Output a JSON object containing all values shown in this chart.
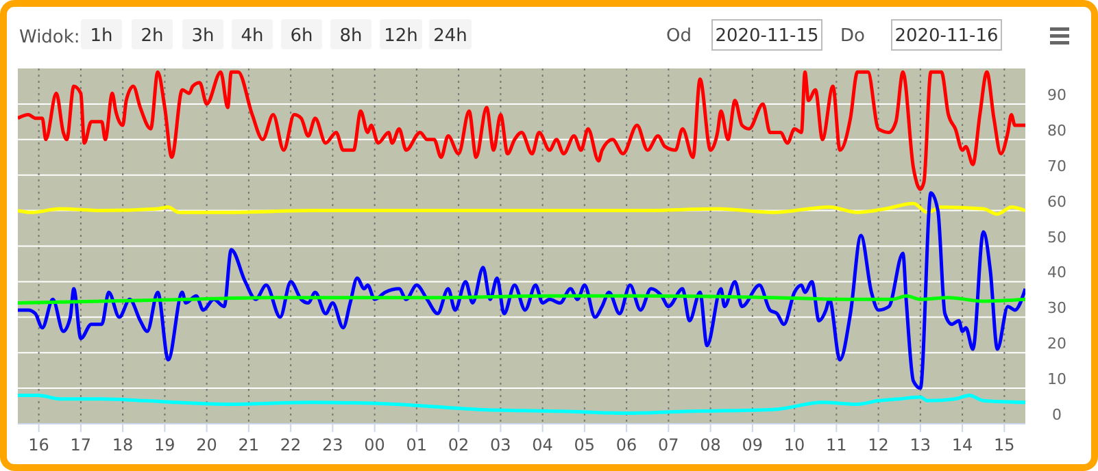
{
  "chart_data": {
    "type": "line",
    "annotations": [
      "Widok:",
      "1h",
      "2h",
      "3h",
      "4h",
      "6h",
      "8h",
      "12h",
      "24h",
      "Od",
      "2020-11-15",
      "Do",
      "2020-11-16"
    ],
    "xlim": [
      "2020-11-15T15:30",
      "2020-11-16T15:30"
    ],
    "xticks": [
      {
        "value": "2020-11-15T16:00",
        "label": "16"
      },
      {
        "value": "2020-11-15T17:00",
        "label": "17"
      },
      {
        "value": "2020-11-15T18:00",
        "label": "18"
      },
      {
        "value": "2020-11-15T19:00",
        "label": "19"
      },
      {
        "value": "2020-11-15T20:00",
        "label": "20"
      },
      {
        "value": "2020-11-15T21:00",
        "label": "21"
      },
      {
        "value": "2020-11-15T22:00",
        "label": "22"
      },
      {
        "value": "2020-11-15T23:00",
        "label": "23"
      },
      {
        "value": "2020-11-16T00:00",
        "label": "00"
      },
      {
        "value": "2020-11-16T01:00",
        "label": "01"
      },
      {
        "value": "2020-11-16T02:00",
        "label": "02"
      },
      {
        "value": "2020-11-16T03:00",
        "label": "03"
      },
      {
        "value": "2020-11-16T04:00",
        "label": "04"
      },
      {
        "value": "2020-11-16T05:00",
        "label": "05"
      },
      {
        "value": "2020-11-16T06:00",
        "label": "06"
      },
      {
        "value": "2020-11-16T07:00",
        "label": "07"
      },
      {
        "value": "2020-11-16T08:00",
        "label": "08"
      },
      {
        "value": "2020-11-16T09:00",
        "label": "09"
      },
      {
        "value": "2020-11-16T10:00",
        "label": "10"
      },
      {
        "value": "2020-11-16T11:00",
        "label": "11"
      },
      {
        "value": "2020-11-16T12:00",
        "label": "12"
      },
      {
        "value": "2020-11-16T13:00",
        "label": "13"
      },
      {
        "value": "2020-11-16T14:00",
        "label": "14"
      },
      {
        "value": "2020-11-16T15:00",
        "label": "15"
      }
    ],
    "ylim": [
      0,
      100
    ],
    "yticks": [
      0,
      10,
      20,
      30,
      40,
      50,
      60,
      70,
      80,
      90
    ],
    "grid": true,
    "marker": "none",
    "line_style": "solid",
    "series": [
      {
        "color": "#ff0000",
        "x": [
          "2020-11-15T15:30",
          "2020-11-15T15:45",
          "2020-11-15T15:55",
          "2020-11-15T16:05",
          "2020-11-15T16:10",
          "2020-11-15T16:25",
          "2020-11-15T16:35",
          "2020-11-15T16:40",
          "2020-11-15T16:50",
          "2020-11-15T17:00",
          "2020-11-15T17:05",
          "2020-11-15T17:15",
          "2020-11-15T17:30",
          "2020-11-15T17:35",
          "2020-11-15T17:45",
          "2020-11-15T17:50",
          "2020-11-15T18:00",
          "2020-11-15T18:05",
          "2020-11-15T18:15",
          "2020-11-15T18:25",
          "2020-11-15T18:40",
          "2020-11-15T18:50",
          "2020-11-15T19:00",
          "2020-11-15T19:10",
          "2020-11-15T19:25",
          "2020-11-15T19:35",
          "2020-11-15T19:40",
          "2020-11-15T19:50",
          "2020-11-15T20:00",
          "2020-11-15T20:20",
          "2020-11-15T20:30",
          "2020-11-15T20:35",
          "2020-11-15T20:45",
          "2020-11-15T21:05",
          "2020-11-15T21:20",
          "2020-11-15T21:35",
          "2020-11-15T21:50",
          "2020-11-15T22:05",
          "2020-11-15T22:15",
          "2020-11-15T22:25",
          "2020-11-15T22:35",
          "2020-11-15T22:50",
          "2020-11-15T23:05",
          "2020-11-15T23:15",
          "2020-11-15T23:30",
          "2020-11-15T23:40",
          "2020-11-15T23:50",
          "2020-11-15T23:55",
          "2020-11-16T00:05",
          "2020-11-16T00:20",
          "2020-11-16T00:25",
          "2020-11-16T00:35",
          "2020-11-16T00:45",
          "2020-11-16T01:05",
          "2020-11-16T01:15",
          "2020-11-16T01:25",
          "2020-11-16T01:35",
          "2020-11-16T01:45",
          "2020-11-16T02:00",
          "2020-11-16T02:15",
          "2020-11-16T02:25",
          "2020-11-16T02:40",
          "2020-11-16T02:50",
          "2020-11-16T03:00",
          "2020-11-16T03:10",
          "2020-11-16T03:20",
          "2020-11-16T03:30",
          "2020-11-16T03:45",
          "2020-11-16T03:55",
          "2020-11-16T04:10",
          "2020-11-16T04:20",
          "2020-11-16T04:30",
          "2020-11-16T04:45",
          "2020-11-16T04:55",
          "2020-11-16T05:05",
          "2020-11-16T05:20",
          "2020-11-16T05:25",
          "2020-11-16T05:40",
          "2020-11-16T05:55",
          "2020-11-16T06:15",
          "2020-11-16T06:30",
          "2020-11-16T06:45",
          "2020-11-16T06:55",
          "2020-11-16T07:10",
          "2020-11-16T07:20",
          "2020-11-16T07:35",
          "2020-11-16T07:45",
          "2020-11-16T08:00",
          "2020-11-16T08:10",
          "2020-11-16T08:15",
          "2020-11-16T08:25",
          "2020-11-16T08:35",
          "2020-11-16T08:45",
          "2020-11-16T08:55",
          "2020-11-16T09:15",
          "2020-11-16T09:25",
          "2020-11-16T09:40",
          "2020-11-16T09:50",
          "2020-11-16T10:00",
          "2020-11-16T10:10",
          "2020-11-16T10:15",
          "2020-11-16T10:20",
          "2020-11-16T10:30",
          "2020-11-16T10:40",
          "2020-11-16T10:55",
          "2020-11-16T11:05",
          "2020-11-16T11:20",
          "2020-11-16T11:30",
          "2020-11-16T11:45",
          "2020-11-16T12:00",
          "2020-11-16T12:15",
          "2020-11-16T12:25",
          "2020-11-16T12:35",
          "2020-11-16T12:50",
          "2020-11-16T13:00",
          "2020-11-16T13:05",
          "2020-11-16T13:15",
          "2020-11-16T13:30",
          "2020-11-16T13:40",
          "2020-11-16T13:50",
          "2020-11-16T14:00",
          "2020-11-16T14:05",
          "2020-11-16T14:15",
          "2020-11-16T14:25",
          "2020-11-16T14:35",
          "2020-11-16T14:45",
          "2020-11-16T14:55",
          "2020-11-16T15:05",
          "2020-11-16T15:10",
          "2020-11-16T15:15",
          "2020-11-16T15:30"
        ],
        "values": [
          86,
          87,
          86,
          86,
          80,
          93,
          82,
          80,
          95,
          93,
          79,
          85,
          85,
          80,
          93,
          88,
          84,
          91,
          95,
          89,
          83,
          99,
          89,
          75,
          94,
          93,
          95,
          96,
          90,
          99,
          89,
          99,
          99,
          87,
          80,
          87,
          77,
          87,
          86,
          81,
          86,
          79,
          82,
          77,
          77,
          88,
          82,
          84,
          79,
          82,
          79,
          83,
          77,
          82,
          80,
          80,
          75,
          81,
          76,
          88,
          75,
          89,
          77,
          87,
          76,
          80,
          82,
          76,
          82,
          77,
          80,
          76,
          81,
          77,
          83,
          74,
          77,
          80,
          76,
          84,
          77,
          81,
          78,
          77,
          83,
          75,
          97,
          77,
          82,
          88,
          80,
          91,
          84,
          83,
          90,
          82,
          82,
          79,
          83,
          82,
          99,
          91,
          94,
          80,
          95,
          77,
          86,
          99,
          99,
          83,
          82,
          85,
          99,
          72,
          66,
          68,
          99,
          99,
          87,
          83,
          77,
          78,
          73,
          87,
          99,
          86,
          76,
          82,
          87,
          84,
          84
        ]
      },
      {
        "color": "#ffff00",
        "x": [
          "2020-11-15T15:30",
          "2020-11-15T15:50",
          "2020-11-15T16:30",
          "2020-11-15T17:30",
          "2020-11-15T18:50",
          "2020-11-15T19:05",
          "2020-11-15T19:20",
          "2020-11-15T20:30",
          "2020-11-15T22:30",
          "2020-11-16T01:30",
          "2020-11-16T06:30",
          "2020-11-16T08:10",
          "2020-11-16T09:30",
          "2020-11-16T10:50",
          "2020-11-16T11:30",
          "2020-11-16T12:10",
          "2020-11-16T12:50",
          "2020-11-16T13:10",
          "2020-11-16T13:30",
          "2020-11-16T14:30",
          "2020-11-16T14:50",
          "2020-11-16T15:10",
          "2020-11-16T15:30"
        ],
        "values": [
          60,
          59.5,
          60.5,
          60,
          60.5,
          61,
          59.5,
          59.5,
          60,
          60,
          60,
          60.5,
          59.5,
          61,
          59.5,
          60.5,
          62,
          59.5,
          61,
          60.5,
          59,
          61,
          60
        ]
      },
      {
        "color": "#0000ff",
        "x": [
          "2020-11-15T15:30",
          "2020-11-15T15:45",
          "2020-11-15T15:55",
          "2020-11-15T16:05",
          "2020-11-15T16:20",
          "2020-11-15T16:35",
          "2020-11-15T16:45",
          "2020-11-15T16:50",
          "2020-11-15T17:00",
          "2020-11-15T17:15",
          "2020-11-15T17:30",
          "2020-11-15T17:40",
          "2020-11-15T17:55",
          "2020-11-15T18:10",
          "2020-11-15T18:25",
          "2020-11-15T18:35",
          "2020-11-15T18:50",
          "2020-11-15T19:05",
          "2020-11-15T19:25",
          "2020-11-15T19:30",
          "2020-11-15T19:45",
          "2020-11-15T19:55",
          "2020-11-15T20:10",
          "2020-11-15T20:25",
          "2020-11-15T20:35",
          "2020-11-15T20:55",
          "2020-11-15T21:10",
          "2020-11-15T21:25",
          "2020-11-15T21:45",
          "2020-11-15T22:00",
          "2020-11-15T22:15",
          "2020-11-15T22:25",
          "2020-11-15T22:35",
          "2020-11-15T22:50",
          "2020-11-15T23:00",
          "2020-11-15T23:15",
          "2020-11-15T23:25",
          "2020-11-15T23:35",
          "2020-11-15T23:45",
          "2020-11-15T23:50",
          "2020-11-16T00:00",
          "2020-11-16T00:15",
          "2020-11-16T00:35",
          "2020-11-16T00:45",
          "2020-11-16T01:00",
          "2020-11-16T01:15",
          "2020-11-16T01:30",
          "2020-11-16T01:45",
          "2020-11-16T01:55",
          "2020-11-16T02:10",
          "2020-11-16T02:20",
          "2020-11-16T02:35",
          "2020-11-16T02:45",
          "2020-11-16T02:55",
          "2020-11-16T03:05",
          "2020-11-16T03:20",
          "2020-11-16T03:35",
          "2020-11-16T03:50",
          "2020-11-16T04:00",
          "2020-11-16T04:10",
          "2020-11-16T04:25",
          "2020-11-16T04:40",
          "2020-11-16T04:50",
          "2020-11-16T05:00",
          "2020-11-16T05:15",
          "2020-11-16T05:25",
          "2020-11-16T05:35",
          "2020-11-16T05:50",
          "2020-11-16T06:05",
          "2020-11-16T06:20",
          "2020-11-16T06:35",
          "2020-11-16T06:50",
          "2020-11-16T07:00",
          "2020-11-16T07:20",
          "2020-11-16T07:30",
          "2020-11-16T07:45",
          "2020-11-16T07:55",
          "2020-11-16T08:15",
          "2020-11-16T08:20",
          "2020-11-16T08:35",
          "2020-11-16T08:45",
          "2020-11-16T09:10",
          "2020-11-16T09:25",
          "2020-11-16T09:35",
          "2020-11-16T09:45",
          "2020-11-16T10:00",
          "2020-11-16T10:10",
          "2020-11-16T10:15",
          "2020-11-16T10:25",
          "2020-11-16T10:35",
          "2020-11-16T10:45",
          "2020-11-16T10:50",
          "2020-11-16T11:05",
          "2020-11-16T11:20",
          "2020-11-16T11:35",
          "2020-11-16T11:50",
          "2020-11-16T12:00",
          "2020-11-16T12:15",
          "2020-11-16T12:35",
          "2020-11-16T12:40",
          "2020-11-16T12:50",
          "2020-11-16T13:00",
          "2020-11-16T13:15",
          "2020-11-16T13:25",
          "2020-11-16T13:35",
          "2020-11-16T13:45",
          "2020-11-16T13:55",
          "2020-11-16T14:00",
          "2020-11-16T14:05",
          "2020-11-16T14:15",
          "2020-11-16T14:30",
          "2020-11-16T14:40",
          "2020-11-16T14:50",
          "2020-11-16T15:05",
          "2020-11-16T15:15",
          "2020-11-16T15:30"
        ],
        "values": [
          32,
          32,
          31,
          27,
          35,
          26,
          30,
          38,
          24,
          28,
          28,
          37,
          30,
          35,
          29,
          26,
          37,
          18,
          37,
          34,
          36,
          32,
          35,
          33,
          49,
          40,
          35,
          39,
          30,
          40,
          35,
          34,
          37,
          31,
          34,
          27,
          34,
          41,
          38,
          39,
          35,
          37,
          38,
          35,
          39,
          35,
          31,
          38,
          32,
          40,
          34,
          44,
          35,
          41,
          31,
          39,
          32,
          39,
          34,
          35,
          34,
          38,
          35,
          39,
          30,
          33,
          37,
          31,
          39,
          32,
          38,
          36,
          33,
          38,
          29,
          37,
          22,
          38,
          33,
          40,
          33,
          39,
          32,
          31,
          28,
          37,
          39,
          37,
          40,
          29,
          32,
          35,
          18,
          31,
          53,
          37,
          32,
          33,
          48,
          34,
          12,
          10,
          65,
          60,
          31,
          28,
          29,
          26,
          27,
          21,
          54,
          43,
          21,
          33,
          32,
          38
        ]
      },
      {
        "color": "#00ff00",
        "x": [
          "2020-11-15T15:30",
          "2020-11-15T17:30",
          "2020-11-15T19:30",
          "2020-11-15T21:30",
          "2020-11-16T01:30",
          "2020-11-16T04:10",
          "2020-11-16T06:30",
          "2020-11-16T09:30",
          "2020-11-16T11:30",
          "2020-11-16T12:20",
          "2020-11-16T12:40",
          "2020-11-16T13:00",
          "2020-11-16T13:40",
          "2020-11-16T14:30",
          "2020-11-16T15:30"
        ],
        "values": [
          34,
          34.5,
          35,
          35.5,
          35.5,
          36,
          36,
          35.5,
          35,
          35,
          36,
          35,
          35.5,
          34.5,
          35
        ]
      },
      {
        "color": "#00ffff",
        "x": [
          "2020-11-15T15:30",
          "2020-11-15T16:00",
          "2020-11-15T16:30",
          "2020-11-15T17:30",
          "2020-11-15T18:30",
          "2020-11-15T20:30",
          "2020-11-15T22:30",
          "2020-11-16T00:30",
          "2020-11-16T02:30",
          "2020-11-16T04:30",
          "2020-11-16T06:00",
          "2020-11-16T07:30",
          "2020-11-16T09:30",
          "2020-11-16T10:40",
          "2020-11-16T11:30",
          "2020-11-16T12:00",
          "2020-11-16T12:30",
          "2020-11-16T13:00",
          "2020-11-16T13:10",
          "2020-11-16T13:50",
          "2020-11-16T14:10",
          "2020-11-16T14:30",
          "2020-11-16T15:30"
        ],
        "values": [
          8,
          8,
          7,
          7,
          6.5,
          5.5,
          6,
          5.5,
          4,
          3.5,
          3,
          3.5,
          4,
          6,
          5.5,
          6.5,
          7,
          7.5,
          6.5,
          7,
          8,
          6.5,
          6
        ]
      }
    ]
  }
}
